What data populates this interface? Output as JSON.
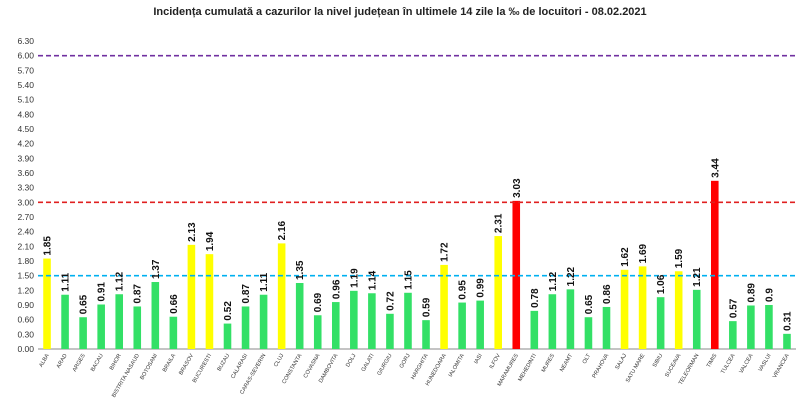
{
  "chart_data": {
    "type": "bar",
    "title": "Incidența cumulată a cazurilor la nivel județean în ultimele 14 zile   la ‰ de locuitori  - 08.02.2021",
    "xlabel": "",
    "ylabel": "",
    "ylim": [
      0,
      6.3
    ],
    "y_ticks": [
      "0.00",
      "0.30",
      "0.60",
      "0.90",
      "1.20",
      "1.50",
      "1.80",
      "2.10",
      "2.40",
      "2.70",
      "3.00",
      "3.30",
      "3.60",
      "3.90",
      "4.20",
      "4.50",
      "4.80",
      "5.10",
      "5.40",
      "5.70",
      "6.00",
      "6.30"
    ],
    "grid": false,
    "legend": "none",
    "categories": [
      "ALBA",
      "ARAD",
      "ARGES",
      "BACAU",
      "BIHOR",
      "BISTRITA NASAUD",
      "BOTOSANI",
      "BRAILA",
      "BRASOV",
      "BUCURESTI",
      "BUZAU",
      "CALARASI",
      "CARAS-SEVERIN",
      "CLUJ",
      "CONSTANTA",
      "COVASNA",
      "DAMBOVITA",
      "DOLJ",
      "GALATI",
      "GIURGIU",
      "GORJ",
      "HARGHITA",
      "HUNEDOARA",
      "IALOMITA",
      "IASI",
      "ILFOV",
      "MARAMURES",
      "MEHEDINTI",
      "MURES",
      "NEAMT",
      "OLT",
      "PRAHOVA",
      "SALAJ",
      "SATU MARE",
      "SIBIU",
      "SUCEAVA",
      "TELEORMAN",
      "TIMIS",
      "TULCEA",
      "VALCEA",
      "VASLUI",
      "VRANCEA"
    ],
    "values": [
      1.85,
      1.11,
      0.65,
      0.91,
      1.12,
      0.87,
      1.37,
      0.66,
      2.13,
      1.94,
      0.52,
      0.87,
      1.11,
      2.16,
      1.35,
      0.69,
      0.96,
      1.19,
      1.14,
      0.72,
      1.15,
      0.59,
      1.72,
      0.95,
      0.99,
      2.31,
      3.03,
      0.78,
      1.12,
      1.22,
      0.65,
      0.86,
      1.62,
      1.69,
      1.06,
      1.59,
      1.21,
      3.44,
      0.57,
      0.89,
      0.9,
      0.31
    ],
    "value_labels": [
      "1.85",
      "1.11",
      "0.65",
      "0.91",
      "1.12",
      "0.87",
      "1.37",
      "0.66",
      "2.13",
      "1.94",
      "0.52",
      "0.87",
      "1.11",
      "2.16",
      "1.35",
      "0.69",
      "0.96",
      "1.19",
      "1.14",
      "0.72",
      "1.15",
      "0.59",
      "1.72",
      "0.95",
      "0.99",
      "2.31",
      "3.03",
      "0.78",
      "1.12",
      "1.22",
      "0.65",
      "0.86",
      "1.62",
      "1.69",
      "1.06",
      "1.59",
      "1.21",
      "3.44",
      "0.57",
      "0.89",
      "0.9",
      "0.31"
    ],
    "thresholds": [
      {
        "value": 1.5,
        "color": "#00B0F0",
        "style": "dashed"
      },
      {
        "value": 3.0,
        "color": "#E02020",
        "style": "dashed"
      },
      {
        "value": 6.0,
        "color": "#7030A0",
        "style": "dashed"
      }
    ],
    "colors": {
      "green": "#33E066",
      "yellow": "#FFFF00",
      "red": "#FF0000",
      "axis": "#888888"
    }
  }
}
